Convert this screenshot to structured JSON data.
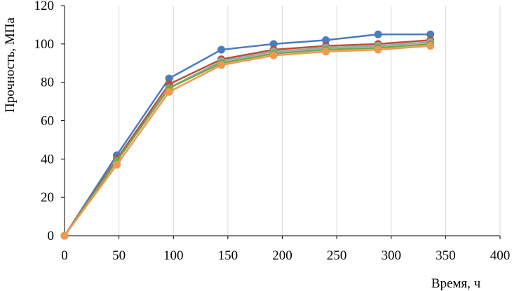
{
  "chart_data": {
    "type": "line",
    "title": "",
    "xlabel": "Время, ч",
    "ylabel": "Прочность, МПа",
    "xlim": [
      0,
      400
    ],
    "ylim": [
      0,
      120
    ],
    "x_ticks": [
      "0",
      "50",
      "100",
      "150",
      "200",
      "250",
      "300",
      "350",
      "400"
    ],
    "y_ticks": [
      "0",
      "20",
      "40",
      "60",
      "80",
      "100",
      "120"
    ],
    "grid": "vertical",
    "legend": "none",
    "x": [
      0,
      48,
      96,
      144,
      192,
      240,
      288,
      336
    ],
    "series": [
      {
        "color": "#4a7cc0",
        "values": [
          0,
          42,
          82,
          97,
          100,
          102,
          105,
          105
        ]
      },
      {
        "color": "#b9503a",
        "values": [
          0,
          40,
          79,
          92,
          97,
          99,
          100,
          102
        ]
      },
      {
        "color": "#9aa8a8",
        "values": [
          0,
          39,
          77,
          91,
          96,
          98,
          99,
          101
        ]
      },
      {
        "color": "#6dab4c",
        "values": [
          0,
          39,
          77,
          90,
          95,
          97,
          98,
          100
        ]
      },
      {
        "color": "#f2984e",
        "values": [
          0,
          37,
          75,
          89,
          94,
          96,
          97,
          99
        ]
      }
    ]
  }
}
